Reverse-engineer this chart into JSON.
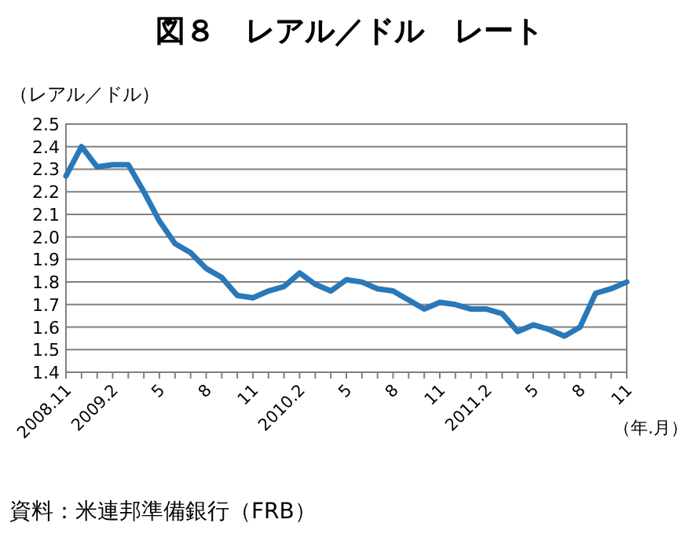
{
  "chart_data": {
    "type": "line",
    "title": "図８　レアル／ドル　レート",
    "ylabel": "（レアル／ドル）",
    "xlabel": "（年.月）",
    "annotations": [
      "資料：米連邦準備銀行（FRB）"
    ],
    "categories": [
      "2008.11",
      null,
      null,
      "2009.2",
      null,
      null,
      "5",
      null,
      null,
      "8",
      null,
      null,
      "11",
      null,
      null,
      "2010.2",
      null,
      null,
      "5",
      null,
      null,
      "8",
      null,
      null,
      "11",
      null,
      null,
      "2011.2",
      null,
      null,
      "5",
      null,
      null,
      "8",
      null,
      null,
      "11"
    ],
    "series": [
      {
        "color": "#2a78b8",
        "values": [
          2.27,
          2.4,
          2.31,
          2.32,
          2.32,
          2.2,
          2.07,
          1.97,
          1.93,
          1.86,
          1.82,
          1.74,
          1.73,
          1.76,
          1.78,
          1.84,
          1.79,
          1.76,
          1.81,
          1.8,
          1.77,
          1.76,
          1.72,
          1.68,
          1.71,
          1.7,
          1.68,
          1.68,
          1.66,
          1.58,
          1.61,
          1.59,
          1.56,
          1.6,
          1.75,
          1.77,
          1.8
        ]
      }
    ],
    "ylim": [
      1.4,
      2.5
    ],
    "yticks": [
      {
        "value": 1.4,
        "label": "1.4"
      },
      {
        "value": 1.5,
        "label": "1.5"
      },
      {
        "value": 1.6,
        "label": "1.6"
      },
      {
        "value": 1.7,
        "label": "1.7"
      },
      {
        "value": 1.8,
        "label": "1.8"
      },
      {
        "value": 1.9,
        "label": "1.9"
      },
      {
        "value": 2.0,
        "label": "2.0"
      },
      {
        "value": 2.1,
        "label": "2.1"
      },
      {
        "value": 2.2,
        "label": "2.2"
      },
      {
        "value": 2.3,
        "label": "2.3"
      },
      {
        "value": 2.4,
        "label": "2.4"
      },
      {
        "value": 2.5,
        "label": "2.5"
      }
    ],
    "grid": "y",
    "marker": "none",
    "line_style": "solid"
  }
}
